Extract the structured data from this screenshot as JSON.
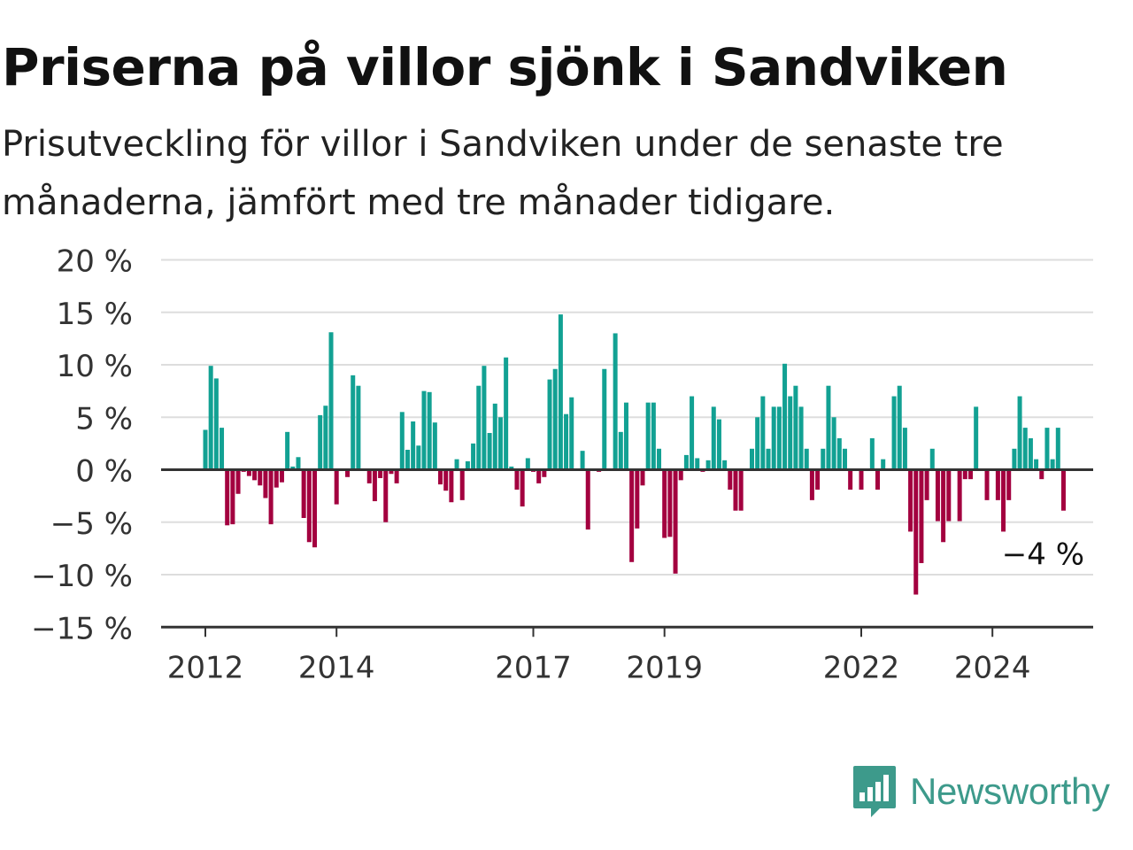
{
  "header": {
    "title": "Priserna på villor sjönk i Sandviken",
    "subtitle": "Prisutveckling för villor i Sandviken under de senaste tre månaderna, jämfört med tre månader tidigare."
  },
  "brand": {
    "name": "Newsworthy"
  },
  "colors": {
    "positive": "#12a193",
    "negative": "#a3003f",
    "grid": "#dddddd",
    "axis": "#333333",
    "brand": "#3d9a8b"
  },
  "chart_data": {
    "type": "bar",
    "x_start": "2012-01",
    "x_step": "month",
    "y_unit": "%",
    "ylim": [
      -15,
      20
    ],
    "y_ticks": [
      20,
      15,
      10,
      5,
      0,
      -5,
      -10,
      -15
    ],
    "y_tick_labels": [
      "20 %",
      "15 %",
      "10 %",
      "5 %",
      "0 %",
      "−5 %",
      "−10 %",
      "−15 %"
    ],
    "x_ticks": [
      "2012",
      "2014",
      "2017",
      "2019",
      "2022",
      "2024"
    ],
    "x_tick_months": [
      "2012-01",
      "2014-01",
      "2017-01",
      "2019-01",
      "2022-01",
      "2024-01"
    ],
    "last_value_label": "−4 %",
    "values": [
      3.8,
      9.9,
      8.7,
      4.0,
      -5.3,
      -5.2,
      -2.3,
      -0.2,
      -0.6,
      -1.0,
      -1.5,
      -2.7,
      -5.2,
      -1.7,
      -1.2,
      3.6,
      0.3,
      1.2,
      -4.6,
      -6.9,
      -7.4,
      5.2,
      6.1,
      13.1,
      -3.3,
      -0.1,
      -0.7,
      9.0,
      8.0,
      -0.1,
      -1.3,
      -3.0,
      -0.8,
      -5.0,
      -0.4,
      -1.3,
      5.5,
      1.9,
      4.6,
      2.3,
      7.5,
      7.4,
      4.5,
      -1.4,
      -2.0,
      -3.1,
      1.0,
      -2.9,
      0.8,
      2.5,
      8.0,
      9.9,
      3.5,
      6.3,
      5.0,
      10.7,
      0.3,
      -1.9,
      -3.5,
      1.1,
      -0.2,
      -1.3,
      -0.7,
      8.6,
      9.6,
      14.8,
      5.3,
      6.9,
      -0.1,
      1.8,
      -5.7,
      -0.1,
      -0.2,
      9.6,
      -0.1,
      13.0,
      3.6,
      6.4,
      -8.8,
      -5.6,
      -1.5,
      6.4,
      6.4,
      2.0,
      -6.5,
      -6.4,
      -9.9,
      -1.0,
      1.4,
      7.0,
      1.1,
      -0.2,
      0.9,
      6.0,
      4.8,
      0.9,
      -1.9,
      -3.9,
      -3.9,
      0.0,
      2.0,
      5.0,
      7.0,
      2.0,
      6.0,
      6.0,
      10.1,
      7.0,
      8.0,
      6.0,
      2.0,
      -2.9,
      -1.9,
      2.0,
      8.0,
      5.0,
      3.0,
      2.0,
      -1.9,
      -0.1,
      -1.9,
      0.1,
      3.0,
      -1.9,
      1.0,
      -0.1,
      7.0,
      8.0,
      4.0,
      -5.9,
      -11.9,
      -8.9,
      -2.9,
      2.0,
      -4.9,
      -6.9,
      -4.9,
      0.0,
      -4.9,
      -0.9,
      -0.9,
      6.0,
      -0.1,
      -2.9,
      0.0,
      -2.9,
      -5.9,
      -2.9,
      2.0,
      7.0,
      4.0,
      3.0,
      1.0,
      -0.9,
      4.0,
      1.0,
      4.0,
      -3.9
    ]
  }
}
